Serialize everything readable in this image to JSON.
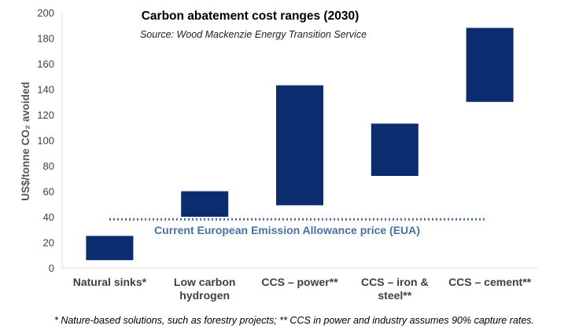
{
  "chart_data": {
    "type": "bar",
    "title": "Carbon abatement cost ranges (2030)",
    "subtitle": "Source: Wood Mackenzie Energy Transition Service",
    "ylabel": "US$/tonne CO₂ avoided",
    "xlabel": "",
    "ylim": [
      0,
      200
    ],
    "yticks": [
      0,
      20,
      40,
      60,
      80,
      100,
      120,
      140,
      160,
      180,
      200
    ],
    "grid": false,
    "categories": [
      [
        "Natural sinks*"
      ],
      [
        "Low carbon",
        "hydrogen"
      ],
      [
        "CCS – power**"
      ],
      [
        "CCS – iron &",
        "steel**"
      ],
      [
        "CCS – cement**"
      ]
    ],
    "ranges": [
      [
        6,
        25
      ],
      [
        40,
        60
      ],
      [
        49,
        143
      ],
      [
        72,
        113
      ],
      [
        130,
        188
      ]
    ],
    "bar_color": "#0b2c6e",
    "reference_line": {
      "value": 38,
      "label": "Current European Emission Allowance price (EUA)",
      "color": "#4a6fa5",
      "style": "dotted"
    },
    "footnote": "* Nature-based solutions, such as forestry projects; ** CCS in power and industry assumes 90% capture rates."
  }
}
